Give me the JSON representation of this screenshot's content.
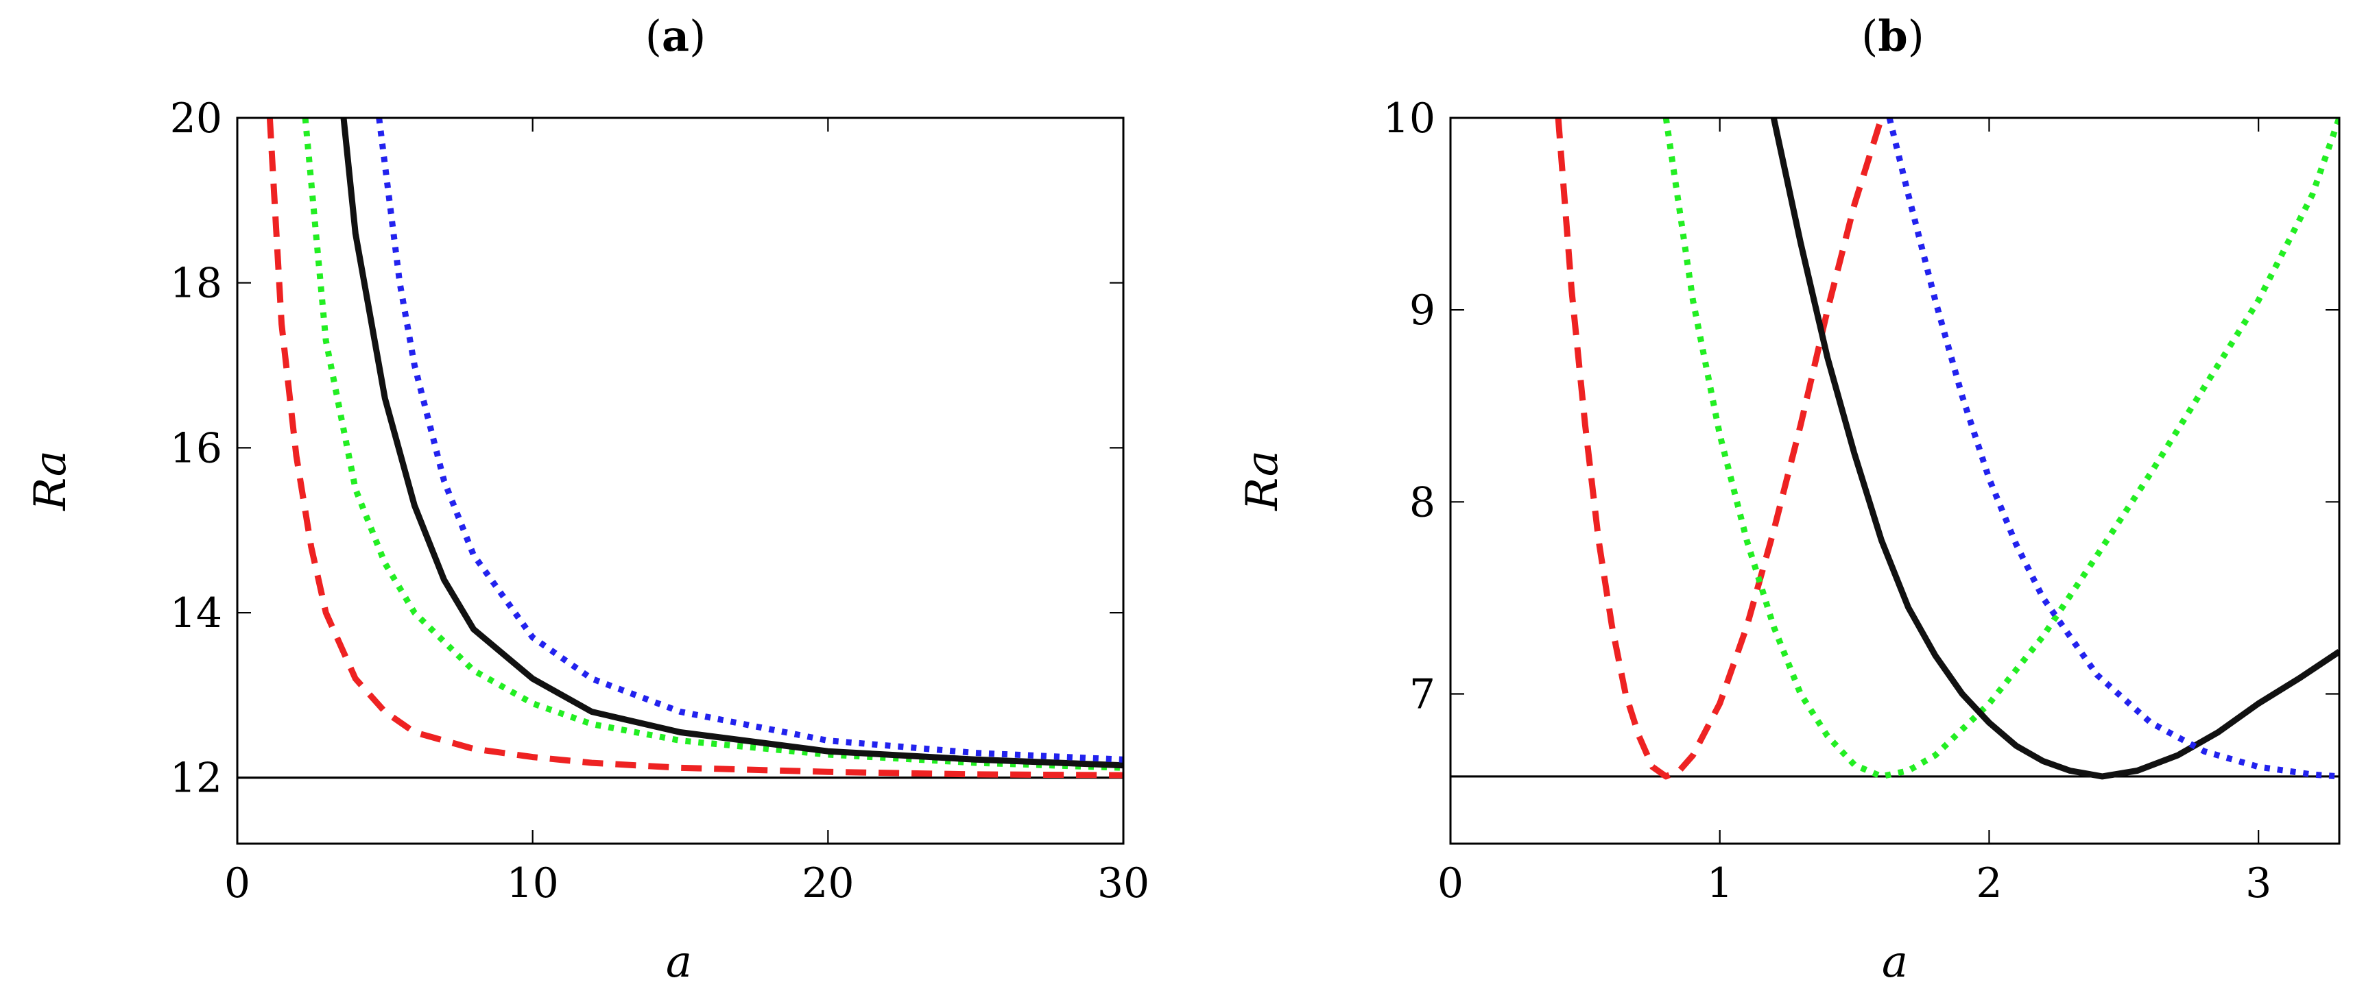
{
  "chart_data": [
    {
      "type": "line",
      "title": "(a)",
      "title_parts": [
        "(",
        "a",
        ")"
      ],
      "xlabel": "a",
      "ylabel": "Ra",
      "xlim": [
        0,
        30
      ],
      "ylim": [
        11.2,
        20
      ],
      "xticks": [
        0,
        10,
        20,
        30
      ],
      "xtick_labels": [
        "0",
        "10",
        "20",
        "30"
      ],
      "yticks": [
        12,
        14,
        16,
        18,
        20
      ],
      "ytick_labels": [
        "12",
        "14",
        "16",
        "18",
        "20"
      ],
      "reference_line": {
        "y": 12,
        "color": "#000000"
      },
      "series": [
        {
          "name": "red-dashed",
          "style": "dashed",
          "color": "#ee2222",
          "x": [
            1.1,
            1.5,
            2,
            2.5,
            3,
            4,
            5,
            6,
            8,
            10,
            12,
            15,
            20,
            25,
            30
          ],
          "y": [
            20,
            17.5,
            15.9,
            14.8,
            14.0,
            13.2,
            12.8,
            12.55,
            12.35,
            12.25,
            12.18,
            12.12,
            12.07,
            12.04,
            12.03
          ]
        },
        {
          "name": "green-dotted",
          "style": "dotted",
          "color": "#22ee22",
          "x": [
            2.3,
            3,
            4,
            5,
            6,
            8,
            10,
            12,
            15,
            20,
            25,
            30
          ],
          "y": [
            20,
            17.3,
            15.5,
            14.6,
            14.0,
            13.3,
            12.9,
            12.65,
            12.45,
            12.28,
            12.18,
            12.12
          ]
        },
        {
          "name": "black-solid",
          "style": "solid",
          "color": "#111111",
          "x": [
            3.6,
            4,
            5,
            6,
            7,
            8,
            10,
            12,
            15,
            20,
            25,
            30
          ],
          "y": [
            20,
            18.6,
            16.6,
            15.3,
            14.4,
            13.8,
            13.2,
            12.8,
            12.55,
            12.32,
            12.22,
            12.15
          ]
        },
        {
          "name": "blue-dotted",
          "style": "dotted",
          "color": "#2222ee",
          "x": [
            4.8,
            5.5,
            6,
            7,
            8,
            10,
            12,
            15,
            20,
            25,
            30
          ],
          "y": [
            20,
            18.0,
            17.0,
            15.6,
            14.7,
            13.7,
            13.2,
            12.8,
            12.45,
            12.3,
            12.22
          ]
        }
      ]
    },
    {
      "type": "line",
      "title": "(b)",
      "title_parts": [
        "(",
        "b",
        ")"
      ],
      "xlabel": "a",
      "ylabel": "Ra",
      "xlim": [
        0,
        3.3
      ],
      "ylim": [
        6.22,
        10
      ],
      "xticks": [
        0,
        1,
        2,
        3
      ],
      "xtick_labels": [
        "0",
        "1",
        "2",
        "3"
      ],
      "yticks": [
        7,
        8,
        9,
        10
      ],
      "ytick_labels": [
        "7",
        "8",
        "9",
        "10"
      ],
      "reference_line": {
        "y": 6.57,
        "color": "#000000"
      },
      "series": [
        {
          "name": "red-dashed",
          "style": "dashed",
          "color": "#ee2222",
          "x": [
            0.4,
            0.45,
            0.5,
            0.55,
            0.6,
            0.65,
            0.7,
            0.75,
            0.8,
            0.85,
            0.9,
            1.0,
            1.1,
            1.2,
            1.3,
            1.4,
            1.5,
            1.6
          ],
          "y": [
            10,
            9.1,
            8.4,
            7.8,
            7.35,
            7.0,
            6.78,
            6.62,
            6.57,
            6.6,
            6.68,
            6.95,
            7.35,
            7.85,
            8.4,
            9.0,
            9.55,
            10.0
          ]
        },
        {
          "name": "green-dotted",
          "style": "dotted",
          "color": "#22ee22",
          "x": [
            0.8,
            0.9,
            1.0,
            1.1,
            1.2,
            1.3,
            1.4,
            1.5,
            1.6,
            1.7,
            1.8,
            2.0,
            2.2,
            2.4,
            2.6,
            2.8,
            3.0,
            3.2,
            3.3
          ],
          "y": [
            10,
            9.05,
            8.35,
            7.8,
            7.35,
            7.0,
            6.78,
            6.63,
            6.57,
            6.6,
            6.68,
            6.95,
            7.3,
            7.72,
            8.15,
            8.6,
            9.05,
            9.6,
            10.0
          ]
        },
        {
          "name": "black-solid",
          "style": "solid",
          "color": "#111111",
          "x": [
            1.2,
            1.3,
            1.4,
            1.5,
            1.6,
            1.7,
            1.8,
            1.9,
            2.0,
            2.1,
            2.2,
            2.3,
            2.42,
            2.55,
            2.7,
            2.85,
            3.0,
            3.15,
            3.3
          ],
          "y": [
            10,
            9.35,
            8.75,
            8.25,
            7.8,
            7.45,
            7.2,
            7.0,
            6.85,
            6.73,
            6.65,
            6.6,
            6.57,
            6.6,
            6.68,
            6.8,
            6.95,
            7.08,
            7.22
          ]
        },
        {
          "name": "blue-dotted",
          "style": "dotted",
          "color": "#2222ee",
          "x": [
            1.63,
            1.7,
            1.8,
            1.9,
            2.0,
            2.1,
            2.2,
            2.4,
            2.6,
            2.8,
            3.0,
            3.2,
            3.3
          ],
          "y": [
            10,
            9.6,
            9.05,
            8.55,
            8.12,
            7.78,
            7.5,
            7.1,
            6.85,
            6.7,
            6.62,
            6.58,
            6.57
          ]
        }
      ]
    }
  ]
}
